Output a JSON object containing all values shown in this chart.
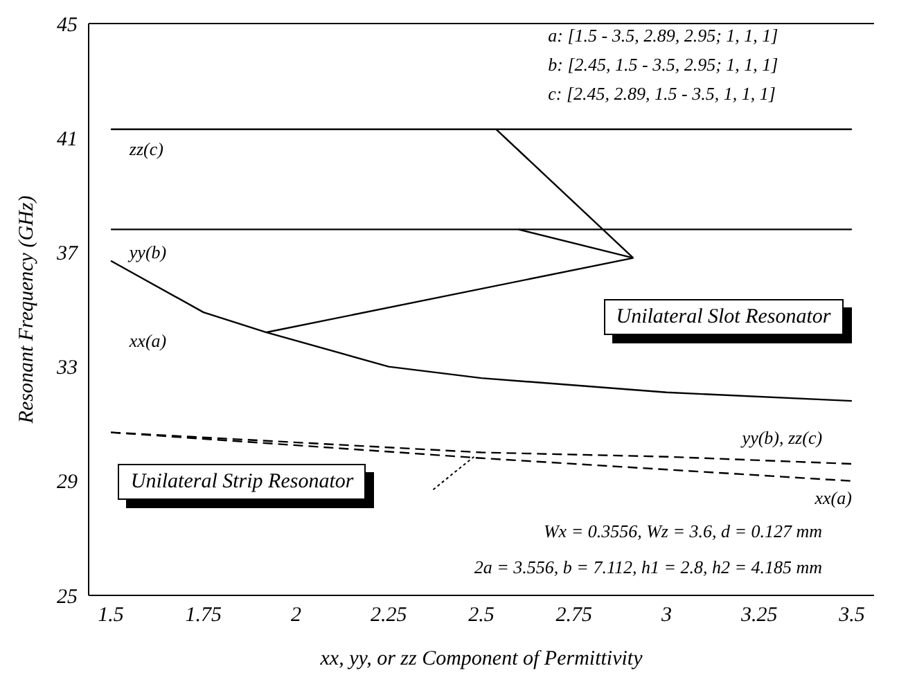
{
  "chart_data": {
    "type": "line",
    "xlabel": "xx, yy, or zz Component of Permittivity",
    "ylabel": "Resonant Frequency (GHz)",
    "xlim": [
      1.44,
      3.56
    ],
    "xticks": [
      1.5,
      1.75,
      2,
      2.25,
      2.5,
      2.75,
      3,
      3.25,
      3.5
    ],
    "ylim": [
      25,
      45
    ],
    "yticks": [
      25,
      29,
      33,
      37,
      41,
      45
    ],
    "marker": "none",
    "series": [
      {
        "name": "zz(c)",
        "color": "#000000",
        "x": [
          1.5,
          3.5
        ],
        "values": [
          41.3,
          41.3
        ]
      },
      {
        "name": "yy(b)",
        "color": "#000000",
        "x": [
          1.5,
          3.5
        ],
        "values": [
          37.8,
          37.8
        ]
      },
      {
        "name": "xx(a)",
        "color": "#000000",
        "x": [
          1.5,
          1.75,
          1.92,
          2.14,
          2.25,
          2.5,
          3.0,
          3.5
        ],
        "values": [
          36.7,
          34.9,
          34.2,
          33.4,
          33.0,
          32.6,
          32.1,
          31.8
        ]
      },
      {
        "color": "#000000",
        "x": [
          2.54,
          2.91
        ],
        "values": [
          41.3,
          36.8
        ]
      },
      {
        "color": "#000000",
        "x": [
          2.6,
          2.91
        ],
        "values": [
          37.8,
          36.8
        ]
      },
      {
        "color": "#000000",
        "x": [
          1.92,
          2.91
        ],
        "values": [
          34.2,
          36.8
        ]
      },
      {
        "name": "yy(b), zz(c)",
        "color": "#000000",
        "line_style": "dashed",
        "x": [
          1.5,
          2.5,
          3.0,
          3.5
        ],
        "values": [
          30.7,
          30.0,
          29.85,
          29.6
        ]
      },
      {
        "name": "xx(a)",
        "color": "#000000",
        "line_style": "dashed",
        "x": [
          1.5,
          2.5,
          3.0,
          3.5
        ],
        "values": [
          30.7,
          29.8,
          29.4,
          29.0
        ]
      }
    ],
    "annotations": [
      "a: [1.5 - 3.5, 2.89, 2.95; 1, 1, 1]",
      "b: [2.45, 1.5 - 3.5, 2.95; 1, 1, 1]",
      "c: [2.45, 2.89, 1.5 - 3.5, 1, 1, 1]",
      "Unilateral Slot Resonator",
      "Unilateral Strip Resonator",
      "Wx = 0.3556, Wz = 3.6, d = 0.127 mm",
      "2a = 3.556, b = 7.112, h1 = 2.8, h2 = 4.185 mm"
    ]
  }
}
